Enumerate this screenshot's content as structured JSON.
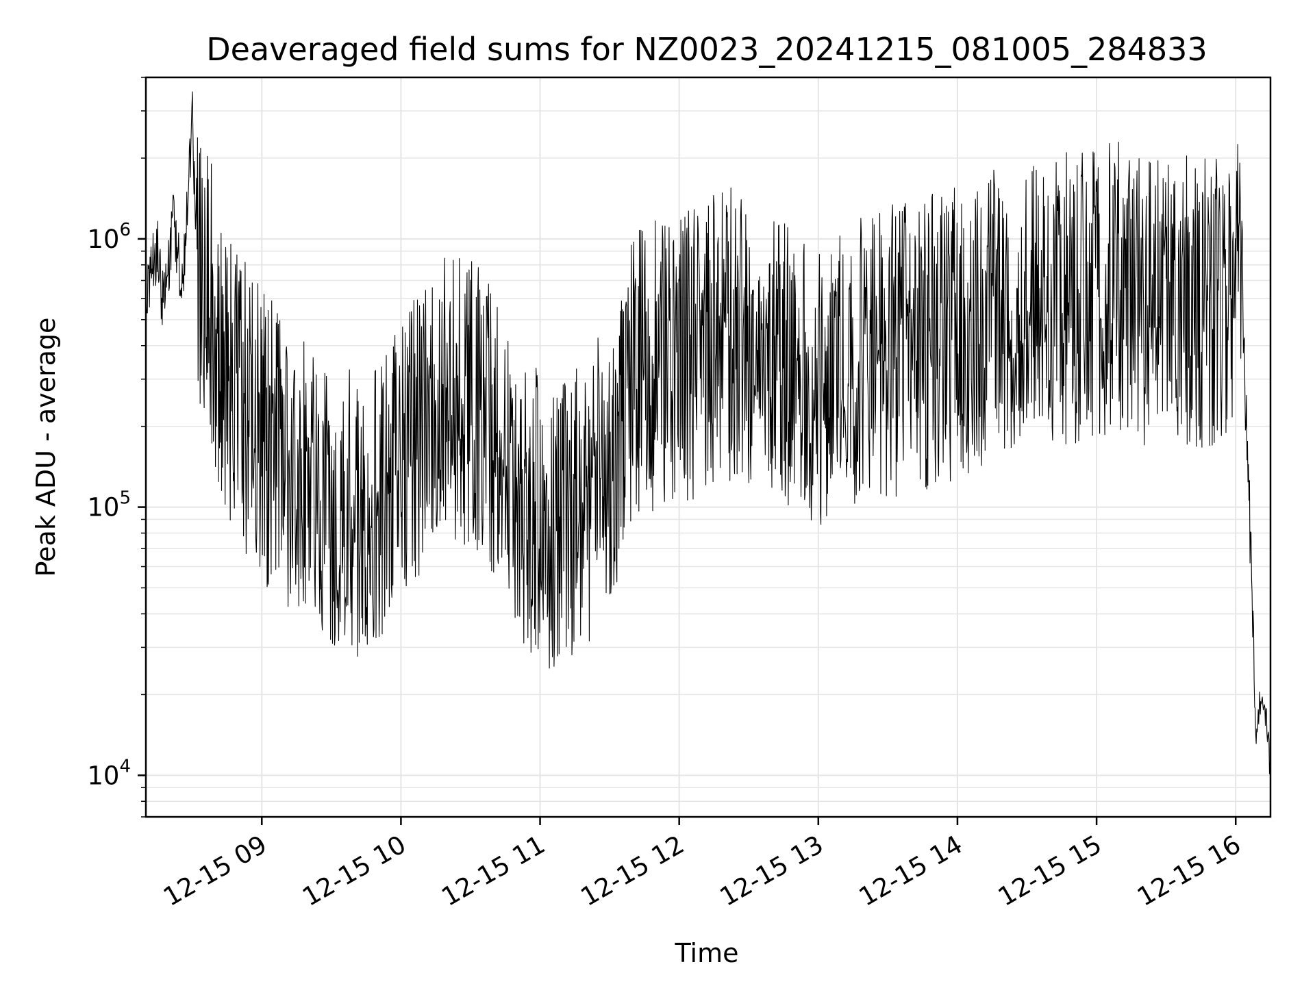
{
  "chart_data": {
    "type": "line",
    "title": "Deaveraged field sums for NZ0023_20241215_081005_284833",
    "xlabel": "Time",
    "ylabel": "Peak ADU - average",
    "yscale": "log",
    "ylim": [
      7000,
      4000000
    ],
    "xlim": [
      "2024-12-15 08:10",
      "2024-12-15 16:15"
    ],
    "grid": true,
    "line_color": "#000000",
    "grid_color": "#e5e5e5",
    "x_ticks": [
      "12-15 09",
      "12-15 10",
      "12-15 11",
      "12-15 12",
      "12-15 13",
      "12-15 14",
      "12-15 15",
      "12-15 16"
    ],
    "y_ticks": [
      {
        "value": 10000,
        "base": "10",
        "exp": "4"
      },
      {
        "value": 100000,
        "base": "10",
        "exp": "5"
      },
      {
        "value": 1000000,
        "base": "10",
        "exp": "6"
      }
    ],
    "series": [
      {
        "x": [
          "2024-12-15 08:10",
          "2024-12-15 08:12",
          "2024-12-15 08:15",
          "2024-12-15 08:17",
          "2024-12-15 08:20",
          "2024-12-15 08:22",
          "2024-12-15 08:25",
          "2024-12-15 08:27",
          "2024-12-15 08:30",
          "2024-12-15 08:32",
          "2024-12-15 08:35",
          "2024-12-15 08:37",
          "2024-12-15 08:40",
          "2024-12-15 08:45",
          "2024-12-15 08:50",
          "2024-12-15 08:55",
          "2024-12-15 09:00",
          "2024-12-15 09:10",
          "2024-12-15 09:20",
          "2024-12-15 09:30",
          "2024-12-15 09:40",
          "2024-12-15 09:50",
          "2024-12-15 10:00",
          "2024-12-15 10:10",
          "2024-12-15 10:20",
          "2024-12-15 10:30",
          "2024-12-15 10:40",
          "2024-12-15 10:50",
          "2024-12-15 11:00",
          "2024-12-15 11:10",
          "2024-12-15 11:20",
          "2024-12-15 11:30",
          "2024-12-15 11:40",
          "2024-12-15 11:50",
          "2024-12-15 12:00",
          "2024-12-15 12:10",
          "2024-12-15 12:20",
          "2024-12-15 12:30",
          "2024-12-15 12:40",
          "2024-12-15 12:50",
          "2024-12-15 13:00",
          "2024-12-15 13:10",
          "2024-12-15 13:20",
          "2024-12-15 13:30",
          "2024-12-15 13:40",
          "2024-12-15 13:50",
          "2024-12-15 14:00",
          "2024-12-15 14:10",
          "2024-12-15 14:20",
          "2024-12-15 14:30",
          "2024-12-15 14:40",
          "2024-12-15 14:50",
          "2024-12-15 15:00",
          "2024-12-15 15:10",
          "2024-12-15 15:20",
          "2024-12-15 15:30",
          "2024-12-15 15:40",
          "2024-12-15 15:50",
          "2024-12-15 15:55",
          "2024-12-15 16:00",
          "2024-12-15 16:03",
          "2024-12-15 16:05",
          "2024-12-15 16:07",
          "2024-12-15 16:08",
          "2024-12-15 16:09",
          "2024-12-15 16:10",
          "2024-12-15 16:12",
          "2024-12-15 16:14",
          "2024-12-15 16:15"
        ],
        "y": [
          650000,
          750000,
          900000,
          600000,
          800000,
          1200000,
          700000,
          900000,
          3000000,
          750000,
          800000,
          650000,
          500000,
          300000,
          250000,
          220000,
          180000,
          150000,
          120000,
          100000,
          95000,
          110000,
          150000,
          200000,
          250000,
          250000,
          180000,
          120000,
          90000,
          85000,
          100000,
          150000,
          300000,
          350000,
          350000,
          400000,
          450000,
          400000,
          350000,
          300000,
          300000,
          330000,
          350000,
          380000,
          400000,
          420000,
          450000,
          500000,
          550000,
          600000,
          600000,
          600000,
          650000,
          650000,
          600000,
          600000,
          580000,
          600000,
          650000,
          750000,
          600000,
          150000,
          60000,
          20000,
          13000,
          18000,
          20000,
          14000,
          9000
        ]
      }
    ]
  }
}
